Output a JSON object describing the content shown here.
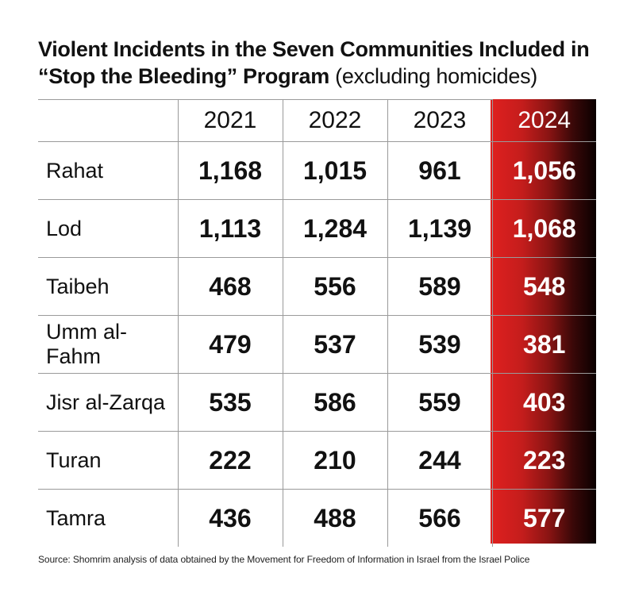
{
  "chart_data": {
    "type": "table",
    "title_bold": "Violent Incidents in the Seven Communities Included in “Stop the Bleeding” Program",
    "title_suffix": "(excluding homicides)",
    "columns": [
      "2021",
      "2022",
      "2023",
      "2024"
    ],
    "rows": [
      {
        "name": "Rahat",
        "values": [
          "1,168",
          "1,015",
          "961",
          "1,056"
        ]
      },
      {
        "name": "Lod",
        "values": [
          "1,113",
          "1,284",
          "1,139",
          "1,068"
        ]
      },
      {
        "name": "Taibeh",
        "values": [
          "468",
          "556",
          "589",
          "548"
        ]
      },
      {
        "name": "Umm al-Fahm",
        "values": [
          "479",
          "537",
          "539",
          "381"
        ]
      },
      {
        "name": "Jisr al-Zarqa",
        "values": [
          "535",
          "586",
          "559",
          "403"
        ]
      },
      {
        "name": "Turan",
        "values": [
          "222",
          "210",
          "244",
          "223"
        ]
      },
      {
        "name": "Tamra",
        "values": [
          "436",
          "488",
          "566",
          "577"
        ]
      }
    ],
    "highlight_column": "2024",
    "highlight_color": "#d61f1f",
    "source": "Source: Shomrim analysis of data obtained by the Movement for Freedom of Information in Israel from the Israel Police"
  }
}
